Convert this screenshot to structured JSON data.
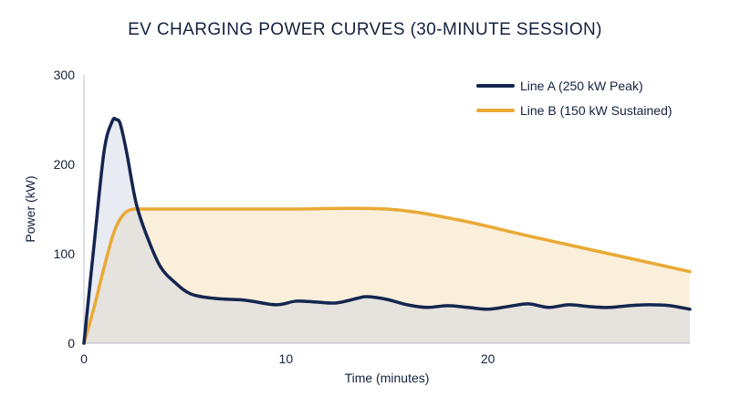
{
  "chart_data": {
    "type": "area",
    "title": "EV CHARGING POWER CURVES (30-MINUTE SESSION)",
    "xlabel": "Time (minutes)",
    "ylabel": "Power (kW)",
    "xlim": [
      0,
      30
    ],
    "ylim": [
      0,
      300
    ],
    "xticks": [
      0,
      10,
      20
    ],
    "yticks": [
      0,
      100,
      200,
      300
    ],
    "grid": false,
    "legend_position": "top-right",
    "series": [
      {
        "name": "Line A (250 kW Peak)",
        "color": "#14254f",
        "x": [
          0,
          0.5,
          1.0,
          1.4,
          1.6,
          1.8,
          2.1,
          2.6,
          3.2,
          3.8,
          4.5,
          5.3,
          6.5,
          8.0,
          9.5,
          10.5,
          11.5,
          12.5,
          13.5,
          14.0,
          15.0,
          16.0,
          17.0,
          18.0,
          19.0,
          20.0,
          21.0,
          22.0,
          23.0,
          24.0,
          25.0,
          26.0,
          27.0,
          28.0,
          29.0,
          30.0
        ],
        "values": [
          0,
          110,
          215,
          248,
          250,
          245,
          215,
          155,
          115,
          85,
          68,
          55,
          50,
          48,
          43,
          47,
          46,
          45,
          50,
          52,
          49,
          43,
          40,
          42,
          40,
          38,
          41,
          44,
          40,
          43,
          41,
          40,
          42,
          43,
          42,
          38
        ]
      },
      {
        "name": "Line B (150 kW Sustained)",
        "color": "#e9a935",
        "x": [
          0,
          0.5,
          1.0,
          1.5,
          2.0,
          2.5,
          3.0,
          5.0,
          10.0,
          15.0,
          18.5,
          22.0,
          26.0,
          30.0
        ],
        "values": [
          0,
          40,
          85,
          125,
          145,
          150,
          150,
          150,
          150,
          150,
          138,
          120,
          100,
          80
        ]
      }
    ]
  }
}
